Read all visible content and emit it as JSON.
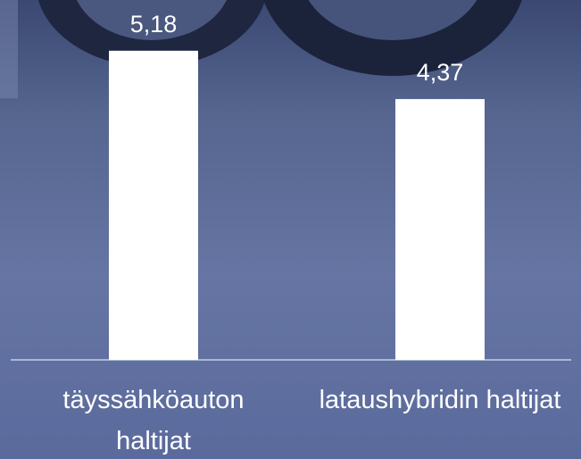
{
  "chart_data": {
    "type": "bar",
    "categories": [
      "täyssähköauton haltijat",
      "lataushybridin haltijat"
    ],
    "values": [
      5.18,
      4.37
    ],
    "value_labels": [
      "5,18",
      "4,37"
    ],
    "color": "#ffffff",
    "ylim": [
      0,
      6
    ]
  }
}
